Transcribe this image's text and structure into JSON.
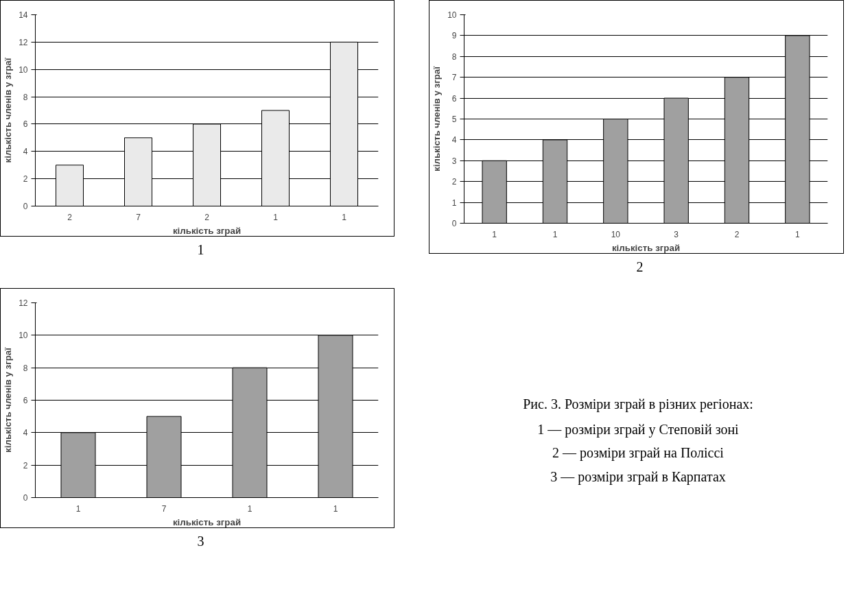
{
  "chart_data": [
    {
      "type": "bar",
      "xlabel": "кількість зграй",
      "ylabel": "кількість членів у зграї",
      "categories": [
        "2",
        "7",
        "2",
        "1",
        "1"
      ],
      "values": [
        3,
        5,
        6,
        7,
        12
      ],
      "color": "#eaeaea",
      "ylim": [
        0,
        14
      ],
      "yticks": [
        0,
        2,
        4,
        6,
        8,
        10,
        12,
        14
      ],
      "grid": "y",
      "annotations": [
        "1"
      ]
    },
    {
      "type": "bar",
      "xlabel": "кількість зграй",
      "ylabel": "кількість членів у зграї",
      "categories": [
        "1",
        "1",
        "10",
        "3",
        "2",
        "1"
      ],
      "values": [
        3,
        4,
        5,
        6,
        7,
        9
      ],
      "color": "#a0a0a0",
      "ylim": [
        0,
        10
      ],
      "yticks": [
        0,
        1,
        2,
        3,
        4,
        5,
        6,
        7,
        8,
        9,
        10
      ],
      "grid": "y",
      "annotations": [
        "2"
      ]
    },
    {
      "type": "bar",
      "xlabel": "кількість зграй",
      "ylabel": "кількість членів у зграї",
      "categories": [
        "1",
        "7",
        "1",
        "1"
      ],
      "values": [
        4,
        5,
        8,
        10
      ],
      "color": "#a0a0a0",
      "ylim": [
        0,
        12
      ],
      "yticks": [
        0,
        2,
        4,
        6,
        8,
        10,
        12
      ],
      "grid": "y",
      "annotations": [
        "3"
      ]
    },
    {
      "type": "other",
      "title": "Рис. 3. Розміри зграй в різних регіонах:",
      "annotations": [
        "1 — розміри зграй у Степовій зоні",
        "2 — розміри зграй на Поліссі",
        "3 — розміри зграй в Карпатах"
      ]
    }
  ]
}
